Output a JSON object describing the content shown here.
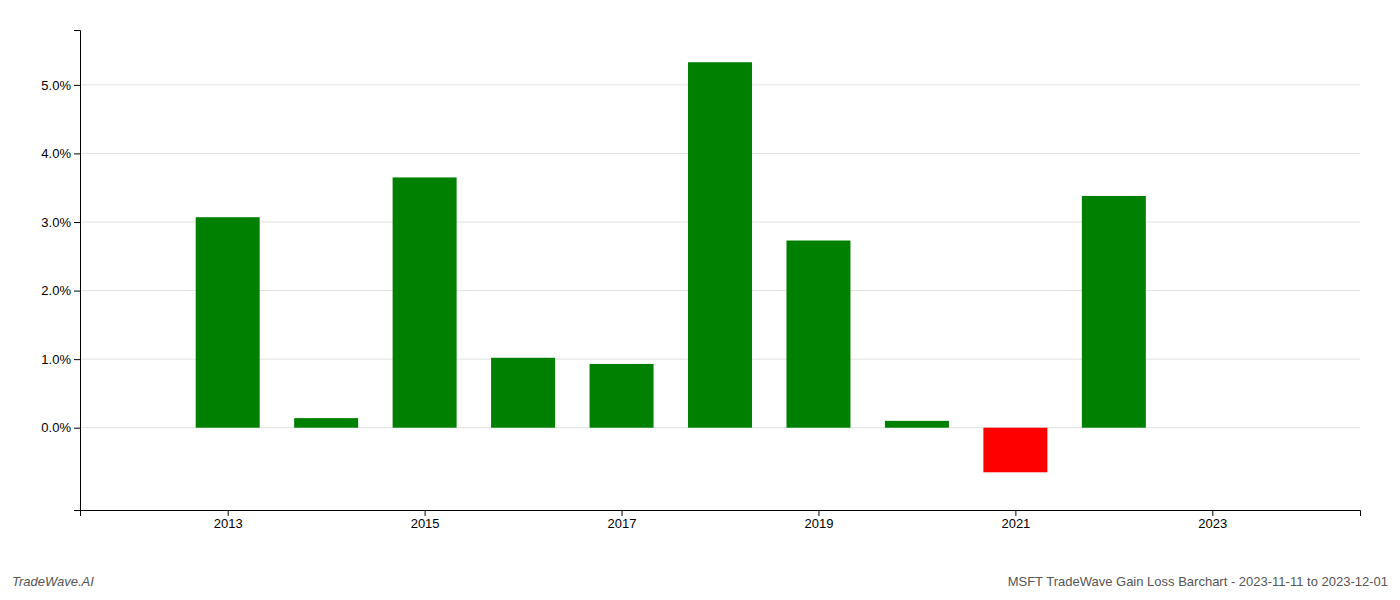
{
  "chart_data": {
    "type": "bar",
    "title": "MSFT TradeWave Gain Loss Barchart - 2023-11-11 to 2023-12-01",
    "annotations": [
      "TradeWave.AI"
    ],
    "x": [
      2013,
      2014,
      2015,
      2016,
      2017,
      2018,
      2019,
      2020,
      2021,
      2022
    ],
    "values": [
      0.0307,
      0.0014,
      0.0365,
      0.0102,
      0.0093,
      0.0533,
      0.0273,
      0.001,
      -0.0065,
      0.0338
    ],
    "colors": [
      "#008000",
      "#008000",
      "#008000",
      "#008000",
      "#008000",
      "#008000",
      "#008000",
      "#008000",
      "#ff0000",
      "#008000"
    ],
    "xlim": [
      2011.5,
      2024.5
    ],
    "xticks": [
      2013,
      2015,
      2017,
      2019,
      2021,
      2023
    ],
    "ylim": [
      -0.012,
      0.058
    ],
    "yticks": [
      {
        "value": 0.0,
        "label": "0.0%"
      },
      {
        "value": 0.01,
        "label": "1.0%"
      },
      {
        "value": 0.02,
        "label": "2.0%"
      },
      {
        "value": 0.03,
        "label": "3.0%"
      },
      {
        "value": 0.04,
        "label": "4.0%"
      },
      {
        "value": 0.05,
        "label": "5.0%"
      }
    ],
    "grid": true
  }
}
